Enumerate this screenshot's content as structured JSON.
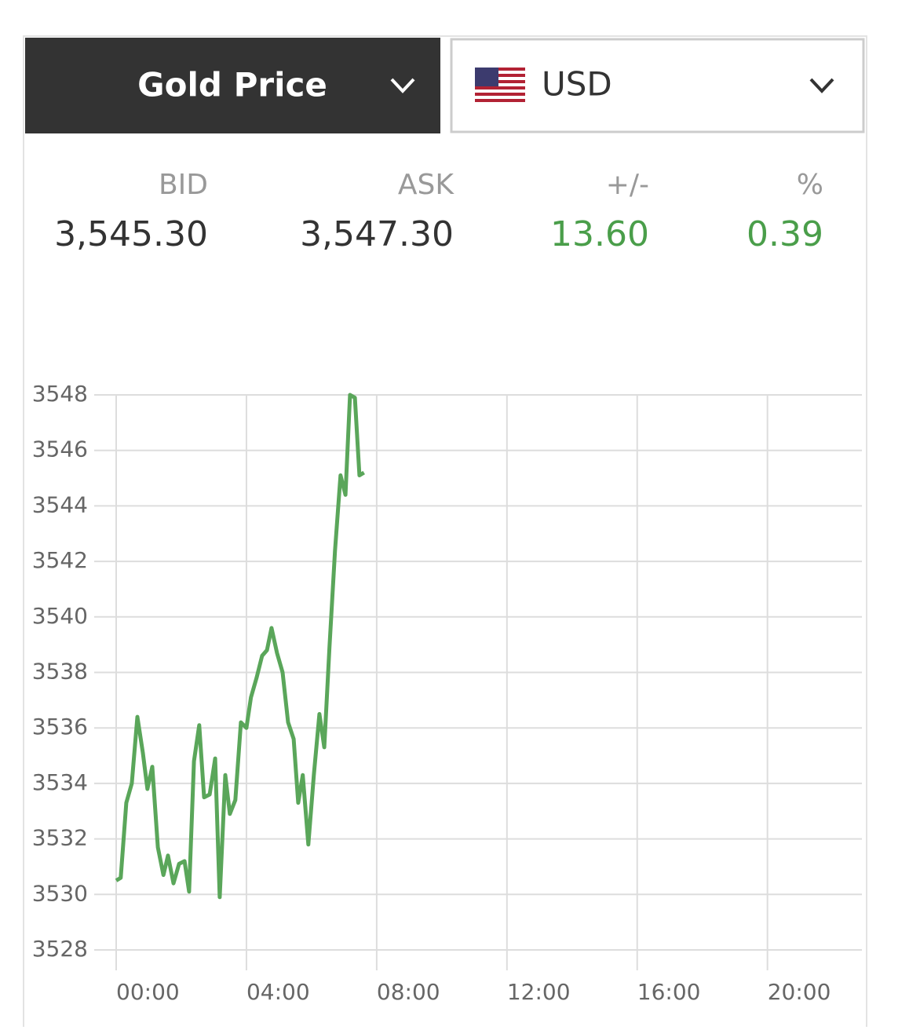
{
  "header": {
    "instrument": "Gold Price",
    "currency": "USD"
  },
  "quote": {
    "columns": [
      {
        "label": "BID",
        "value": "3,545.30"
      },
      {
        "label": "ASK",
        "value": "3,547.30"
      },
      {
        "label": "+/-",
        "value": "13.60"
      },
      {
        "label": "%",
        "value": "0.39"
      }
    ]
  },
  "chart_data": {
    "type": "line",
    "color": "#5aa65a",
    "grid": true,
    "x": [
      0,
      0.14,
      0.31,
      0.48,
      0.65,
      0.82,
      0.96,
      1.11,
      1.28,
      1.45,
      1.59,
      1.76,
      1.93,
      2.1,
      2.24,
      2.39,
      2.55,
      2.7,
      2.87,
      3.04,
      3.18,
      3.35,
      3.49,
      3.66,
      3.83,
      4.0,
      4.14,
      4.31,
      4.48,
      4.63,
      4.77,
      4.94,
      5.11,
      5.28,
      5.45,
      5.59,
      5.73,
      5.9,
      6.07,
      6.24,
      6.39,
      6.55,
      6.72,
      6.89,
      7.04,
      7.18,
      7.33,
      7.47,
      7.61
    ],
    "values": [
      3530.5,
      3530.6,
      3533.3,
      3534.0,
      3536.4,
      3535.1,
      3533.8,
      3534.6,
      3531.7,
      3530.7,
      3531.4,
      3530.4,
      3531.1,
      3531.2,
      3530.1,
      3534.8,
      3536.1,
      3533.5,
      3533.6,
      3534.9,
      3529.9,
      3534.3,
      3532.9,
      3533.4,
      3536.2,
      3536.0,
      3537.1,
      3537.8,
      3538.6,
      3538.8,
      3539.6,
      3538.7,
      3538.0,
      3536.2,
      3535.6,
      3533.3,
      3534.3,
      3531.8,
      3534.3,
      3536.5,
      3535.3,
      3538.9,
      3542.4,
      3545.1,
      3544.4,
      3548.0,
      3547.9,
      3545.1,
      3545.2
    ],
    "xlim": [
      0,
      22.9
    ],
    "xticks": [
      {
        "value": 0,
        "label": "00:00"
      },
      {
        "value": 4,
        "label": "04:00"
      },
      {
        "value": 8,
        "label": "08:00"
      },
      {
        "value": 12,
        "label": "12:00"
      },
      {
        "value": 16,
        "label": "16:00"
      },
      {
        "value": 20,
        "label": "20:00"
      }
    ],
    "ylim": [
      3528,
      3548
    ],
    "yticks": [
      3528,
      3530,
      3532,
      3534,
      3536,
      3538,
      3540,
      3542,
      3544,
      3546,
      3548
    ]
  }
}
